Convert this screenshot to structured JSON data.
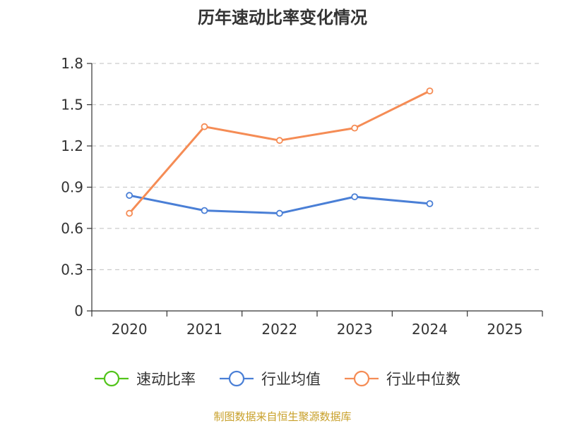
{
  "chart_data": {
    "type": "line",
    "title": "历年速动比率变化情况",
    "categories": [
      "2020",
      "2021",
      "2022",
      "2023",
      "2024",
      "2025"
    ],
    "ylim": [
      0,
      1.8
    ],
    "yticks": [
      "0",
      "0.3",
      "0.6",
      "0.9",
      "1.2",
      "1.5",
      "1.8"
    ],
    "grid": true,
    "legend_position": "bottom",
    "series": [
      {
        "name": "速动比率",
        "color": "#52c41a",
        "values": [
          null,
          null,
          null,
          null,
          null,
          null
        ]
      },
      {
        "name": "行业均值",
        "color": "#4a7fd6",
        "values": [
          0.84,
          0.73,
          0.71,
          0.83,
          0.78,
          null
        ]
      },
      {
        "name": "行业中位数",
        "color": "#f58c55",
        "values": [
          0.71,
          1.34,
          1.24,
          1.33,
          1.6,
          null
        ]
      }
    ]
  },
  "footer": {
    "source": "制图数据来自恒生聚源数据库",
    "source_color": "#c8a02a"
  }
}
